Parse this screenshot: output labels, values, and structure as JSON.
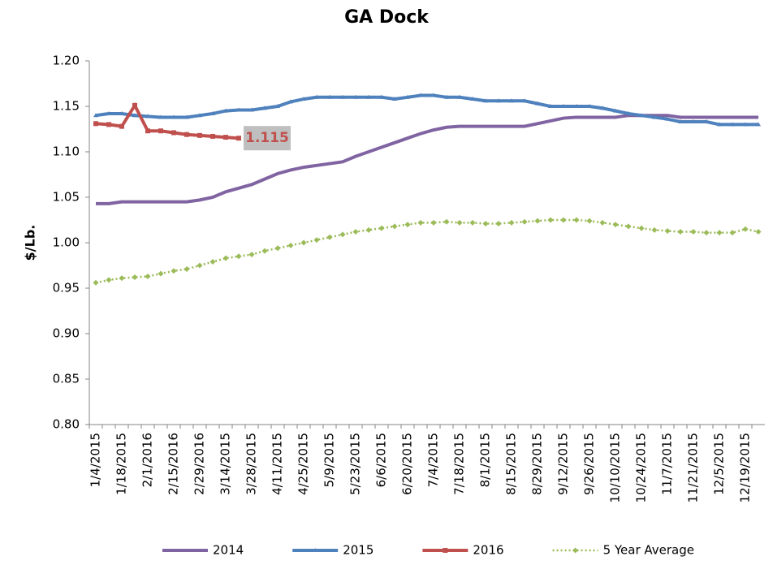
{
  "chart_data": {
    "type": "line",
    "title": "GA Dock",
    "y_label": "$/Lb.",
    "categories": [
      "1/4/2015",
      null,
      "1/18/2015",
      null,
      "2/1/2016",
      null,
      "2/15/2016",
      null,
      "2/29/2016",
      null,
      "3/14/2015",
      null,
      "3/28/2015",
      null,
      "4/11/2015",
      null,
      "4/25/2015",
      null,
      "5/9/2015",
      null,
      "5/23/2015",
      null,
      "6/6/2015",
      null,
      "6/20/2015",
      null,
      "7/4/2015",
      null,
      "7/18/2015",
      null,
      "8/1/2015",
      null,
      "8/15/2015",
      null,
      "8/29/2015",
      null,
      "9/12/2015",
      null,
      "9/26/2015",
      null,
      "10/10/2015",
      null,
      "10/24/2015",
      null,
      "11/7/2015",
      null,
      "11/21/2015",
      null,
      "12/5/2015",
      null,
      "12/19/2015",
      null
    ],
    "ylim": [
      0.8,
      1.2
    ],
    "yticks": [
      {
        "value": 0.8,
        "label": "0.80"
      },
      {
        "value": 0.85,
        "label": "0.85"
      },
      {
        "value": 0.9,
        "label": "0.90"
      },
      {
        "value": 0.95,
        "label": "0.95"
      },
      {
        "value": 1.0,
        "label": "1.00"
      },
      {
        "value": 1.05,
        "label": "1.05"
      },
      {
        "value": 1.1,
        "label": "1.10"
      },
      {
        "value": 1.15,
        "label": "1.15"
      },
      {
        "value": 1.2,
        "label": "1.20"
      }
    ],
    "legend": "bottom",
    "series": [
      {
        "name": "2014",
        "color": "#8064a2",
        "marker": "none",
        "values": [
          1.043,
          1.043,
          1.045,
          1.045,
          1.045,
          1.045,
          1.045,
          1.045,
          1.047,
          1.05,
          1.056,
          1.06,
          1.064,
          1.07,
          1.076,
          1.08,
          1.083,
          1.085,
          1.087,
          1.089,
          1.095,
          1.1,
          1.105,
          1.11,
          1.115,
          1.12,
          1.124,
          1.127,
          1.128,
          1.128,
          1.128,
          1.128,
          1.128,
          1.128,
          1.131,
          1.134,
          1.137,
          1.138,
          1.138,
          1.138,
          1.138,
          1.14,
          1.14,
          1.14,
          1.14,
          1.138,
          1.138,
          1.138,
          1.138,
          1.138,
          1.138,
          1.138
        ]
      },
      {
        "name": "2015",
        "color": "#4f81bd",
        "marker": "triangle",
        "values": [
          1.14,
          1.142,
          1.142,
          1.14,
          1.139,
          1.138,
          1.138,
          1.138,
          1.14,
          1.142,
          1.145,
          1.146,
          1.146,
          1.148,
          1.15,
          1.155,
          1.158,
          1.16,
          1.16,
          1.16,
          1.16,
          1.16,
          1.16,
          1.158,
          1.16,
          1.162,
          1.162,
          1.16,
          1.16,
          1.158,
          1.156,
          1.156,
          1.156,
          1.156,
          1.153,
          1.15,
          1.15,
          1.15,
          1.15,
          1.148,
          1.145,
          1.142,
          1.14,
          1.138,
          1.136,
          1.133,
          1.133,
          1.133,
          1.13,
          1.13,
          1.13,
          1.13
        ]
      },
      {
        "name": "2016",
        "color": "#c0504d",
        "marker": "square",
        "values": [
          1.131,
          1.13,
          1.128,
          1.151,
          1.123,
          1.123,
          1.121,
          1.119,
          1.118,
          1.117,
          1.116,
          1.115,
          null,
          null,
          null,
          null,
          null,
          null,
          null,
          null,
          null,
          null,
          null,
          null,
          null,
          null,
          null,
          null,
          null,
          null,
          null,
          null,
          null,
          null,
          null,
          null,
          null,
          null,
          null,
          null,
          null,
          null,
          null,
          null,
          null,
          null,
          null,
          null,
          null,
          null,
          null,
          null
        ]
      },
      {
        "name": "5 Year Average",
        "color": "#9bbb59",
        "marker": "diamond",
        "dashed": true,
        "values": [
          0.956,
          0.959,
          0.961,
          0.962,
          0.963,
          0.966,
          0.969,
          0.971,
          0.975,
          0.979,
          0.983,
          0.985,
          0.987,
          0.991,
          0.994,
          0.997,
          1.0,
          1.003,
          1.006,
          1.009,
          1.012,
          1.014,
          1.016,
          1.018,
          1.02,
          1.022,
          1.022,
          1.023,
          1.022,
          1.022,
          1.021,
          1.021,
          1.022,
          1.023,
          1.024,
          1.025,
          1.025,
          1.025,
          1.024,
          1.022,
          1.02,
          1.018,
          1.016,
          1.014,
          1.013,
          1.012,
          1.012,
          1.011,
          1.011,
          1.011,
          1.015,
          1.012
        ]
      }
    ]
  }
}
